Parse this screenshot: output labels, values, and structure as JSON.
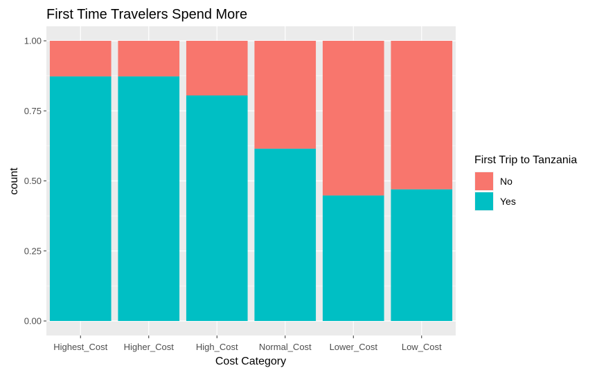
{
  "chart_data": {
    "type": "bar",
    "stacked": true,
    "title": "First Time Travelers Spend More",
    "xlabel": "Cost Category",
    "ylabel": "count",
    "ylim": [
      0,
      1
    ],
    "yticks": [
      "0.00",
      "0.25",
      "0.50",
      "0.75",
      "1.00"
    ],
    "ytick_values": [
      0,
      0.25,
      0.5,
      0.75,
      1.0
    ],
    "categories": [
      "Highest_Cost",
      "Higher_Cost",
      "High_Cost",
      "Normal_Cost",
      "Lower_Cost",
      "Low_Cost"
    ],
    "series": [
      {
        "name": "Yes",
        "values": [
          0.873,
          0.873,
          0.805,
          0.615,
          0.448,
          0.47
        ],
        "color": "#00BFC4"
      },
      {
        "name": "No",
        "values": [
          0.127,
          0.127,
          0.195,
          0.385,
          0.552,
          0.53
        ],
        "color": "#F8766D"
      }
    ],
    "legend": {
      "title": "First Trip to Tanzania",
      "placement": "right",
      "entries": [
        {
          "label": "No",
          "color": "#F8766D"
        },
        {
          "label": "Yes",
          "color": "#00BFC4"
        }
      ]
    },
    "grid": true,
    "panel_background": "#EBEBEB"
  }
}
